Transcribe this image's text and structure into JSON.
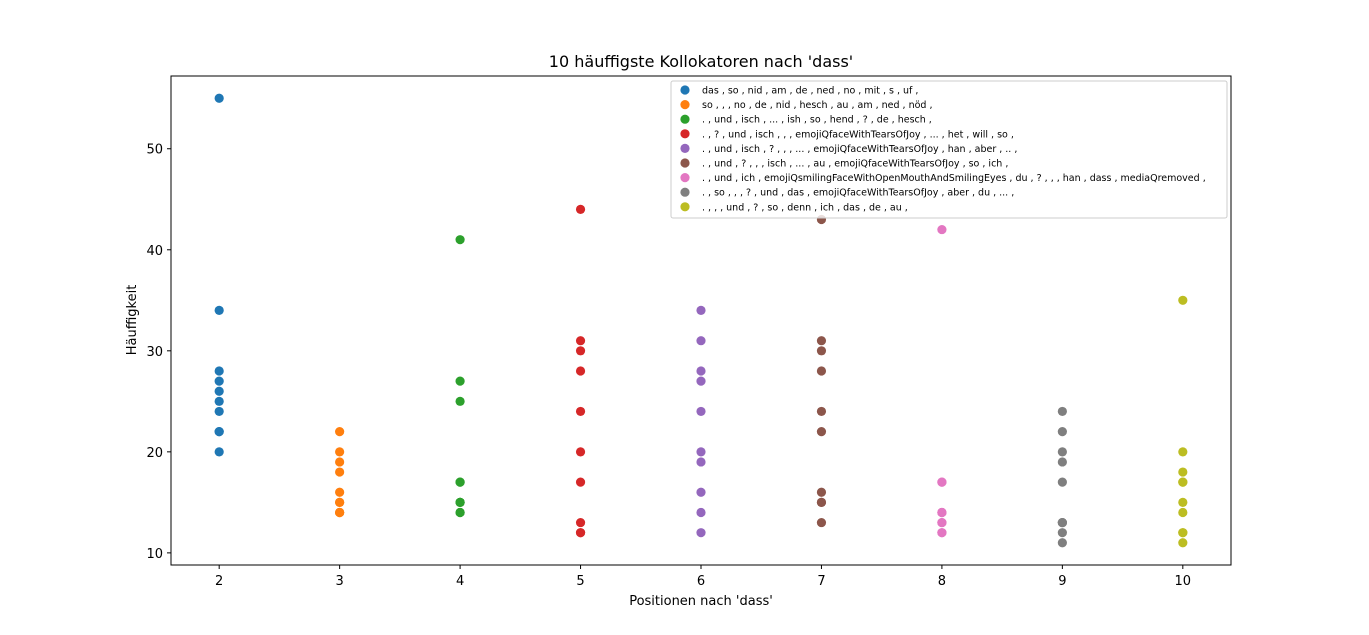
{
  "chart_data": {
    "type": "scatter",
    "title": "10 häuffigste Kollokatoren nach 'dass'",
    "xlabel": "Positionen nach 'dass'",
    "ylabel": "Häuffigkeit",
    "xlim": [
      1.6,
      10.4
    ],
    "ylim": [
      8.8,
      57.2
    ],
    "xticks": [
      2,
      3,
      4,
      5,
      6,
      7,
      8,
      9,
      10
    ],
    "yticks": [
      10,
      20,
      30,
      40,
      50
    ],
    "grid": false,
    "legend_position": "top-right",
    "series": [
      {
        "name": "das , so , nid , am , de , ned , no , mit , s , uf ,",
        "color": "#1f77b4",
        "x": 2,
        "values": [
          55,
          34,
          28,
          27,
          26,
          25,
          24,
          22,
          22,
          20
        ]
      },
      {
        "name": "so , , , no , de , nid , hesch , au , am , ned , nöd ,",
        "color": "#ff7f0e",
        "x": 3,
        "values": [
          22,
          20,
          19,
          18,
          16,
          15,
          15,
          14,
          14,
          14
        ]
      },
      {
        "name": ". , und , isch , ... , ish , so , hend , ? , de , hesch ,",
        "color": "#2ca02c",
        "x": 4,
        "values": [
          41,
          27,
          25,
          17,
          17,
          15,
          15,
          15,
          14,
          14
        ]
      },
      {
        "name": ". , ? , und , isch , , , emojiQfaceWithTearsOfJoy , ... , het , will , so ,",
        "color": "#d62728",
        "x": 5,
        "values": [
          44,
          31,
          30,
          28,
          24,
          20,
          17,
          13,
          12,
          12
        ]
      },
      {
        "name": ". , und , isch , ? , , , ... , emojiQfaceWithTearsOfJoy , han , aber , .. ,",
        "color": "#9467bd",
        "x": 6,
        "values": [
          34,
          31,
          28,
          27,
          24,
          20,
          19,
          16,
          14,
          12
        ]
      },
      {
        "name": ". , und , ? , , , isch , ... , au , emojiQfaceWithTearsOfJoy , so , ich ,",
        "color": "#8c564b",
        "x": 7,
        "values": [
          43,
          31,
          30,
          28,
          24,
          22,
          16,
          15,
          15,
          13
        ]
      },
      {
        "name": ". , und , ich , emojiQsmilingFaceWithOpenMouthAndSmilingEyes , du , ? , , , han , dass , mediaQremoved ,",
        "color": "#e377c2",
        "x": 8,
        "values": [
          42,
          17,
          17,
          14,
          14,
          14,
          13,
          13,
          12,
          12
        ]
      },
      {
        "name": ". , so , , , ? , und , das , emojiQfaceWithTearsOfJoy , aber , du , ... ,",
        "color": "#7f7f7f",
        "x": 9,
        "values": [
          24,
          22,
          20,
          19,
          17,
          13,
          13,
          13,
          12,
          11
        ]
      },
      {
        "name": ". , , , und , ? , so , denn , ich , das , de , au ,",
        "color": "#bcbd22",
        "x": 10,
        "values": [
          35,
          20,
          18,
          17,
          17,
          15,
          14,
          12,
          12,
          11
        ]
      }
    ]
  }
}
